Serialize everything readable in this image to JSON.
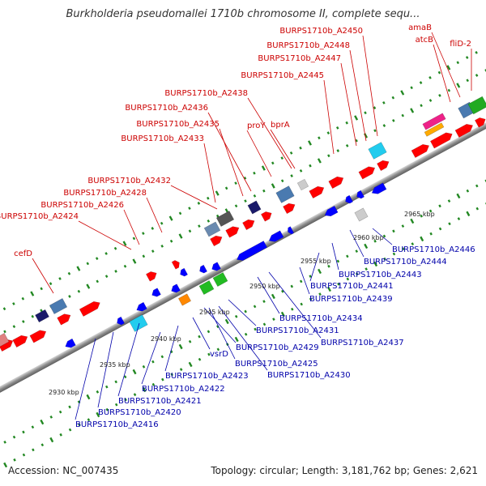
{
  "title": "Burkholderia pseudomallei 1710b chromosome II, complete sequ...",
  "footer": {
    "accession": "Accession: NC_007435",
    "topology": "Topology: circular; Length: 3,181,762 bp; Genes: 2,621"
  },
  "colors": {
    "backbone": "#9a9a9a",
    "forward_gene": "#ff0000",
    "reverse_gene": "#0000ff",
    "forward_label": "#cc0000",
    "reverse_label": "#0000aa",
    "tick": "#228822"
  },
  "scale_marks": [
    "2930 kbp",
    "2935 kbp",
    "2940 kbp",
    "2945 kbp",
    "2950 kbp",
    "2955 kbp",
    "2960 kbp",
    "2965 kbp"
  ],
  "forward_labels": [
    "cefD",
    "BURPS1710b_A2424",
    "BURPS1710b_A2426",
    "BURPS1710b_A2428",
    "BURPS1710b_A2432",
    "BURPS1710b_A2433",
    "BURPS1710b_A2435",
    "BURPS1710b_A2436",
    "BURPS1710b_A2438",
    "proY",
    "bprA",
    "BURPS1710b_A2445",
    "BURPS1710b_A2447",
    "BURPS1710b_A2448",
    "BURPS1710b_A2450",
    "atcB",
    "amaB",
    "fliD-2"
  ],
  "reverse_labels": [
    "BURPS1710b_A2416",
    "BURPS1710b_A2420",
    "BURPS1710b_A2421",
    "BURPS1710b_A2422",
    "BURPS1710b_A2423",
    "vsrD",
    "BURPS1710b_A2425",
    "BURPS1710b_A2429",
    "BURPS1710b_A2430",
    "BURPS1710b_A2431",
    "BURPS1710b_A2434",
    "BURPS1710b_A2437",
    "BURPS1710b_A2439",
    "BURPS1710b_A2441",
    "BURPS1710b_A2443",
    "BURPS1710b_A2444",
    "BURPS1710b_A2446"
  ]
}
